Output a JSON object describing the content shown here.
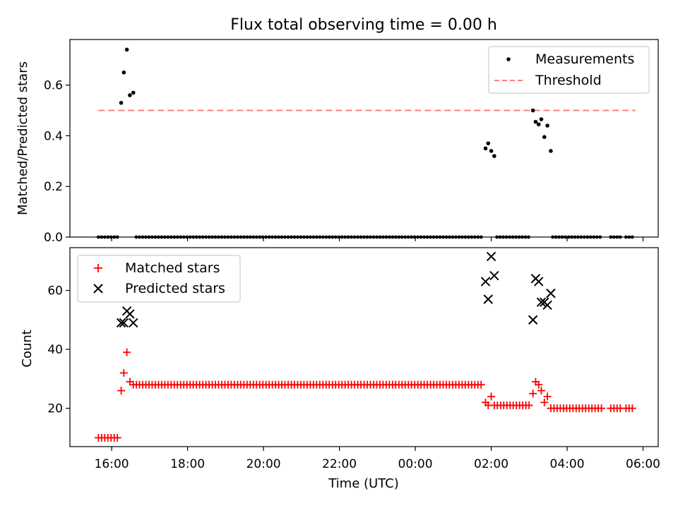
{
  "title": "Flux total observing time = 0.00 h",
  "colors": {
    "measurements": "#000000",
    "threshold": "#ff7f7f",
    "matched": "#ff0000",
    "predicted": "#000000"
  },
  "chart_data": [
    {
      "type": "scatter",
      "ylabel": "Matched/Predicted stars",
      "ylim": [
        0,
        0.78
      ],
      "yticks": [
        "0.0",
        "0.2",
        "0.4",
        "0.6"
      ],
      "x_unit": "hours since 16:00 UTC",
      "legend": {
        "placement": "top-right",
        "entries": [
          "Measurements",
          "Threshold"
        ]
      },
      "threshold": {
        "name": "Threshold",
        "value": 0.5,
        "x_range": [
          15.65,
          29.8
        ]
      },
      "series": [
        {
          "name": "Measurements",
          "nonzero_points": [
            [
              16.25,
              0.53
            ],
            [
              16.32,
              0.65
            ],
            [
              16.4,
              0.74
            ],
            [
              16.48,
              0.56
            ],
            [
              16.57,
              0.57
            ],
            [
              25.85,
              0.35
            ],
            [
              25.92,
              0.37
            ],
            [
              26.0,
              0.34
            ],
            [
              26.08,
              0.32
            ],
            [
              27.1,
              0.5
            ],
            [
              27.17,
              0.455
            ],
            [
              27.25,
              0.445
            ],
            [
              27.32,
              0.465
            ],
            [
              27.4,
              0.395
            ],
            [
              27.48,
              0.44
            ],
            [
              27.57,
              0.34
            ]
          ],
          "zero_ranges": [
            [
              15.65,
              16.2
            ],
            [
              16.65,
              25.8
            ],
            [
              26.15,
              27.0
            ],
            [
              27.62,
              28.95
            ],
            [
              29.15,
              29.4
            ],
            [
              29.55,
              29.75
            ]
          ]
        }
      ]
    },
    {
      "type": "scatter",
      "ylabel": "Count",
      "xlabel": "Time (UTC)",
      "ylim": [
        7,
        74.5
      ],
      "yticks": [
        "20",
        "40",
        "60"
      ],
      "xlim": [
        14.9,
        30.4
      ],
      "xticks": [
        "16:00",
        "18:00",
        "20:00",
        "22:00",
        "00:00",
        "02:00",
        "04:00",
        "06:00"
      ],
      "legend": {
        "placement": "top-left",
        "entries": [
          "Matched stars",
          "Predicted stars"
        ]
      },
      "series": [
        {
          "name": "Matched stars",
          "points": [
            [
              16.25,
              26
            ],
            [
              16.32,
              32
            ],
            [
              16.4,
              39
            ],
            [
              16.48,
              29
            ],
            [
              16.57,
              28
            ],
            [
              25.85,
              22
            ],
            [
              25.92,
              21
            ],
            [
              26.0,
              24
            ],
            [
              27.1,
              25
            ],
            [
              27.17,
              29
            ],
            [
              27.25,
              28
            ],
            [
              27.32,
              26
            ],
            [
              27.4,
              22
            ],
            [
              27.48,
              24
            ]
          ],
          "constant_ranges": [
            {
              "y": 10,
              "from": 15.65,
              "to": 16.2
            },
            {
              "y": 28,
              "from": 16.65,
              "to": 25.8
            },
            {
              "y": 21,
              "from": 26.08,
              "to": 27.0
            },
            {
              "y": 20,
              "from": 27.57,
              "to": 28.95
            },
            {
              "y": 20,
              "from": 29.15,
              "to": 29.4
            },
            {
              "y": 20,
              "from": 29.55,
              "to": 29.75
            }
          ]
        },
        {
          "name": "Predicted stars",
          "points": [
            [
              16.25,
              49
            ],
            [
              16.32,
              49
            ],
            [
              16.4,
              53
            ],
            [
              16.48,
              52
            ],
            [
              16.57,
              49
            ],
            [
              25.85,
              63
            ],
            [
              25.92,
              57
            ],
            [
              26.0,
              71.5
            ],
            [
              26.08,
              65
            ],
            [
              27.1,
              50
            ],
            [
              27.17,
              64
            ],
            [
              27.25,
              63
            ],
            [
              27.32,
              56
            ],
            [
              27.4,
              56
            ],
            [
              27.48,
              55
            ],
            [
              27.57,
              59
            ]
          ]
        }
      ]
    }
  ]
}
